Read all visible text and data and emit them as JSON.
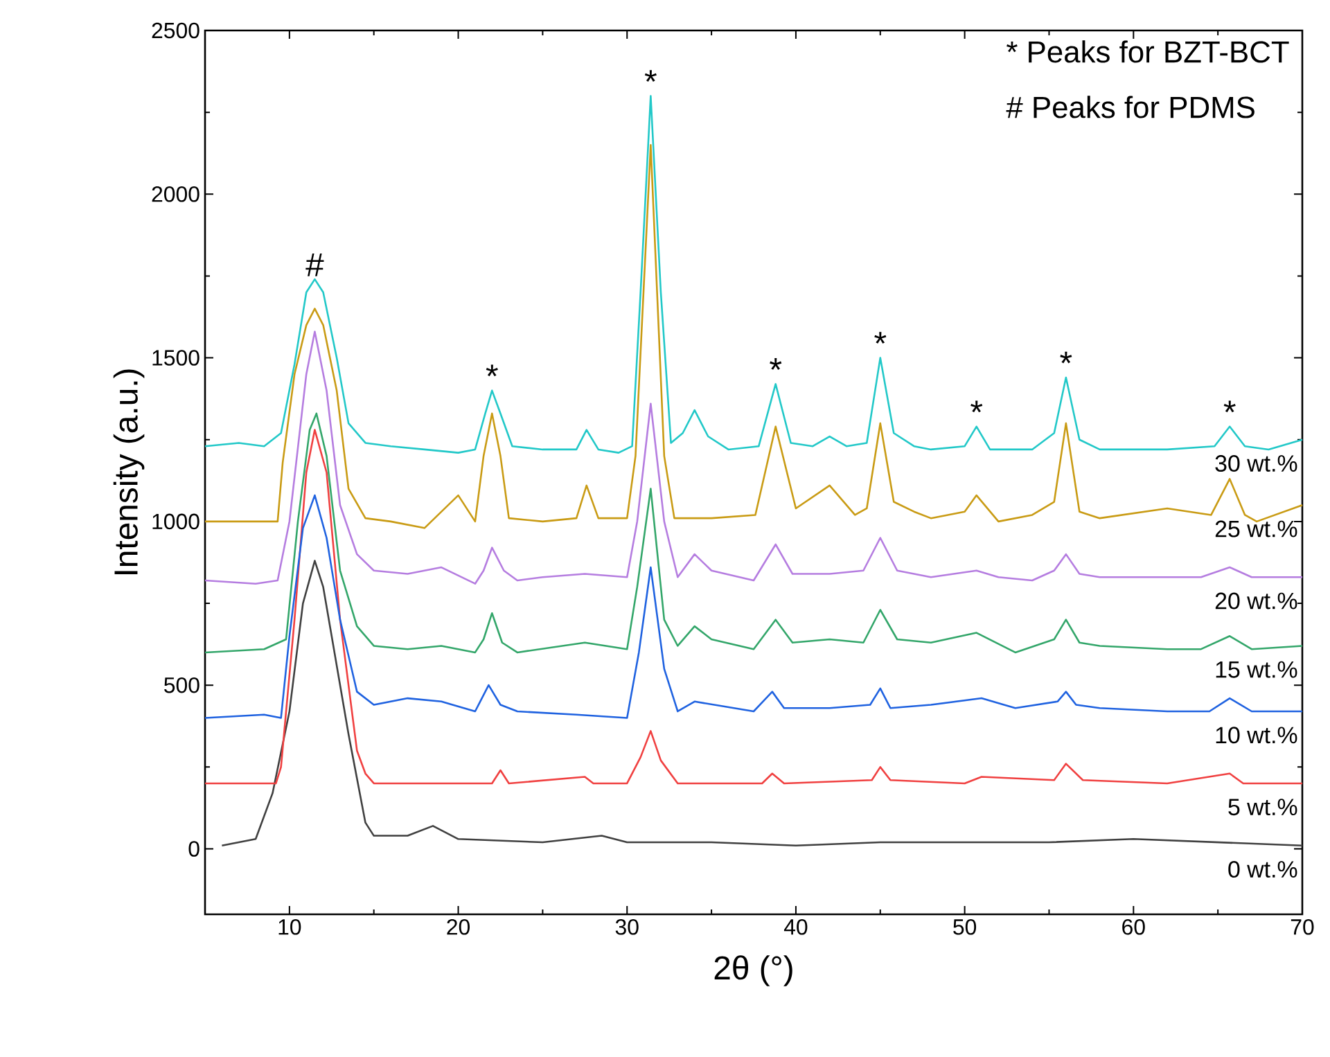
{
  "chart_data": {
    "type": "line",
    "xlabel": "2θ (°)",
    "ylabel": "Intensity (a.u.)",
    "xlim": [
      5,
      70
    ],
    "ylim": [
      -200,
      2500
    ],
    "xticks": [
      10,
      20,
      30,
      40,
      50,
      60,
      70
    ],
    "yticks": [
      0,
      500,
      1000,
      1500,
      2000,
      2500
    ],
    "series": [
      {
        "name": "0 wt.%",
        "color": "#404040",
        "x": [
          6,
          7,
          8,
          9,
          10,
          10.8,
          11.5,
          12,
          12.5,
          13.5,
          14.5,
          15,
          17,
          18.5,
          20,
          25,
          28.5,
          30,
          35,
          40,
          45,
          50,
          55,
          60,
          65,
          70
        ],
        "values": [
          10,
          20,
          30,
          170,
          420,
          750,
          880,
          800,
          650,
          350,
          80,
          40,
          40,
          70,
          30,
          20,
          40,
          20,
          20,
          10,
          20,
          20,
          20,
          30,
          20,
          10
        ]
      },
      {
        "name": "5 wt.%",
        "color": "#f04040",
        "x": [
          5,
          9.2,
          9.5,
          10.3,
          11,
          11.5,
          12.2,
          13,
          14,
          14.5,
          15,
          18,
          22,
          22.5,
          23,
          27.5,
          28,
          30,
          30.8,
          31.4,
          32,
          33,
          38,
          38.6,
          39.3,
          44.5,
          45,
          45.6,
          50,
          51,
          55.3,
          56,
          57,
          62,
          65.7,
          66.5,
          70
        ],
        "values": [
          200,
          200,
          250,
          700,
          1150,
          1280,
          1150,
          700,
          300,
          230,
          200,
          200,
          200,
          240,
          200,
          220,
          200,
          200,
          280,
          360,
          270,
          200,
          200,
          230,
          200,
          210,
          250,
          210,
          200,
          220,
          210,
          260,
          210,
          200,
          230,
          200,
          200
        ]
      },
      {
        "name": "10 wt.%",
        "color": "#1f62e0",
        "x": [
          5,
          8.5,
          9.5,
          10,
          10.8,
          11.5,
          12.2,
          13,
          14,
          15,
          17,
          19,
          21,
          21.8,
          22.5,
          23.5,
          27,
          30,
          30.7,
          31.4,
          32.2,
          33,
          34,
          37.5,
          38.6,
          39.3,
          42,
          44.4,
          45,
          45.6,
          48,
          51,
          53,
          55.5,
          56,
          56.6,
          58,
          62,
          64.5,
          65.7,
          67,
          70
        ],
        "values": [
          400,
          410,
          400,
          650,
          980,
          1080,
          950,
          700,
          480,
          440,
          460,
          450,
          420,
          500,
          440,
          420,
          410,
          400,
          600,
          860,
          550,
          420,
          450,
          420,
          480,
          430,
          430,
          440,
          490,
          430,
          440,
          460,
          430,
          450,
          480,
          440,
          430,
          420,
          420,
          460,
          420,
          420
        ]
      },
      {
        "name": "15 wt.%",
        "color": "#33a66a",
        "x": [
          5,
          8.5,
          9.8,
          10.5,
          11.2,
          11.6,
          12.2,
          13,
          14,
          15,
          17,
          19,
          21,
          21.5,
          22,
          22.6,
          23.5,
          27.5,
          30,
          30.6,
          31.4,
          32.2,
          33,
          34,
          35,
          37.5,
          38.8,
          39.8,
          42,
          44,
          45,
          46,
          48,
          50.7,
          53,
          55.3,
          56,
          56.8,
          58,
          62,
          64,
          65.7,
          67,
          70
        ],
        "values": [
          600,
          610,
          640,
          1000,
          1280,
          1330,
          1200,
          850,
          680,
          620,
          610,
          620,
          600,
          640,
          720,
          630,
          600,
          630,
          610,
          800,
          1100,
          700,
          620,
          680,
          640,
          610,
          700,
          630,
          640,
          630,
          730,
          640,
          630,
          660,
          600,
          640,
          700,
          630,
          620,
          610,
          610,
          650,
          610,
          620
        ]
      },
      {
        "name": "20 wt.%",
        "color": "#b57de0",
        "x": [
          5,
          8,
          9.3,
          10,
          11,
          11.5,
          12.2,
          13,
          14,
          15,
          17,
          19,
          21,
          21.5,
          22,
          22.7,
          23.5,
          25,
          27.5,
          30,
          30.6,
          31.4,
          32.2,
          33,
          34,
          35,
          37.5,
          38.8,
          39.8,
          42,
          44,
          45,
          46,
          48,
          50.7,
          52,
          54,
          55.3,
          56,
          56.8,
          58,
          62,
          64,
          65.7,
          67,
          70
        ],
        "values": [
          820,
          810,
          820,
          1000,
          1450,
          1580,
          1400,
          1050,
          900,
          850,
          840,
          860,
          810,
          850,
          920,
          850,
          820,
          830,
          840,
          830,
          1000,
          1360,
          1000,
          830,
          900,
          850,
          820,
          930,
          840,
          840,
          850,
          950,
          850,
          830,
          850,
          830,
          820,
          850,
          900,
          840,
          830,
          830,
          830,
          860,
          830,
          830
        ]
      },
      {
        "name": "25 wt.%",
        "color": "#c99b14",
        "x": [
          5,
          8,
          9.3,
          9.6,
          10.3,
          11,
          11.5,
          12,
          12.8,
          13.5,
          14.5,
          16,
          18,
          20,
          21,
          21.5,
          22,
          22.5,
          23,
          25,
          27,
          27.6,
          28.3,
          30,
          30.5,
          31.4,
          32.2,
          32.8,
          35,
          37.6,
          38.8,
          40,
          42,
          43.5,
          44.2,
          45,
          45.8,
          47,
          48,
          50,
          50.7,
          52,
          54,
          55.3,
          56,
          56.8,
          58,
          62,
          64.6,
          65.7,
          66.6,
          67.3,
          70
        ],
        "values": [
          1000,
          1000,
          1000,
          1180,
          1450,
          1600,
          1650,
          1600,
          1400,
          1100,
          1010,
          1000,
          980,
          1080,
          1000,
          1200,
          1330,
          1200,
          1010,
          1000,
          1010,
          1110,
          1010,
          1010,
          1200,
          2150,
          1200,
          1010,
          1010,
          1020,
          1290,
          1040,
          1110,
          1020,
          1040,
          1300,
          1060,
          1030,
          1010,
          1030,
          1080,
          1000,
          1020,
          1060,
          1300,
          1030,
          1010,
          1040,
          1020,
          1130,
          1020,
          1000,
          1050
        ]
      },
      {
        "name": "30 wt.%",
        "color": "#22c8c8",
        "x": [
          5,
          7,
          8.5,
          9.5,
          10.3,
          11,
          11.5,
          12,
          12.8,
          13.5,
          14.5,
          16,
          18,
          20,
          21,
          21.6,
          22,
          22.5,
          23.2,
          25,
          27,
          27.6,
          28.3,
          29.5,
          30.3,
          30.8,
          31.4,
          32,
          32.6,
          33.3,
          34,
          34.8,
          36,
          37.8,
          38.8,
          39.7,
          41,
          42,
          43,
          44.2,
          45,
          45.8,
          47,
          48,
          50,
          50.7,
          51.5,
          54,
          55.3,
          56,
          56.8,
          58,
          62,
          64.8,
          65.7,
          66.6,
          68,
          70
        ],
        "values": [
          1230,
          1240,
          1230,
          1270,
          1480,
          1700,
          1740,
          1700,
          1500,
          1300,
          1240,
          1230,
          1220,
          1210,
          1220,
          1330,
          1400,
          1330,
          1230,
          1220,
          1220,
          1280,
          1220,
          1210,
          1230,
          1700,
          2300,
          1700,
          1240,
          1270,
          1340,
          1260,
          1220,
          1230,
          1420,
          1240,
          1230,
          1260,
          1230,
          1240,
          1500,
          1270,
          1230,
          1220,
          1230,
          1290,
          1220,
          1220,
          1270,
          1440,
          1250,
          1220,
          1220,
          1230,
          1290,
          1230,
          1220,
          1250
        ]
      }
    ],
    "annotations": [
      "* Peaks for BZT-BCT",
      "# Peaks for PDMS",
      {
        "text": "#",
        "x": 11.5,
        "y": 1740
      },
      {
        "text": "*",
        "x": 22,
        "y": 1400
      },
      {
        "text": "*",
        "x": 31.4,
        "y": 2300
      },
      {
        "text": "*",
        "x": 38.8,
        "y": 1420
      },
      {
        "text": "*",
        "x": 45,
        "y": 1500
      },
      {
        "text": "*",
        "x": 50.7,
        "y": 1290
      },
      {
        "text": "*",
        "x": 56,
        "y": 1440
      },
      {
        "text": "*",
        "x": 65.7,
        "y": 1290
      }
    ]
  }
}
